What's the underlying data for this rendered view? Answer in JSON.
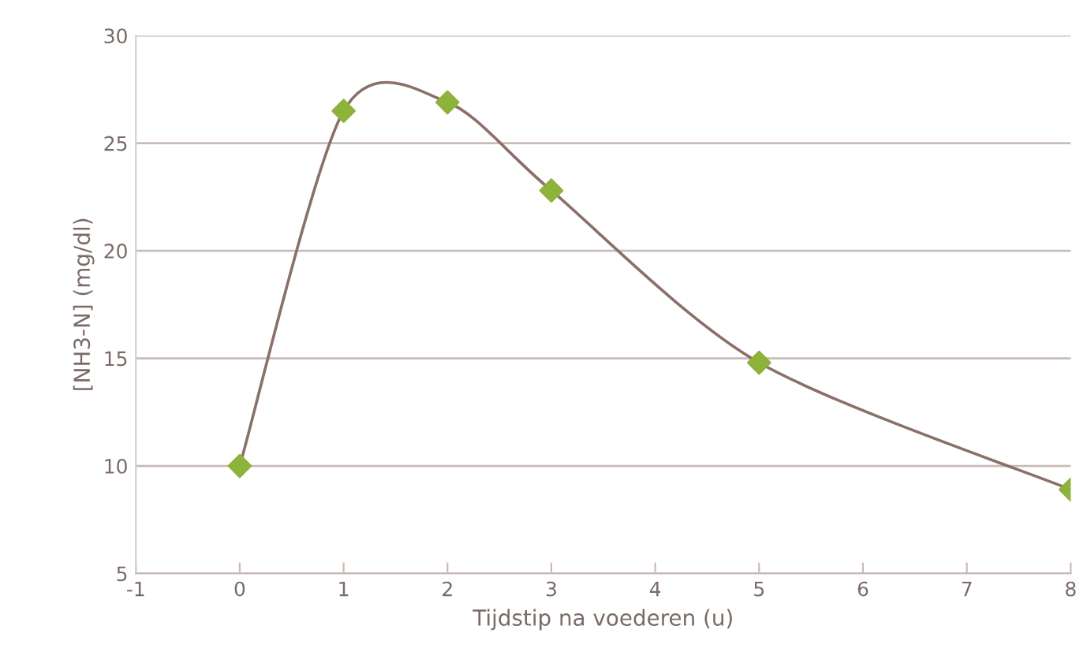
{
  "chart_data": {
    "type": "line",
    "xlabel": "Tijdstip na voederen (u)",
    "ylabel": "[NH3-N] (mg/dl)",
    "x": [
      0,
      1,
      2,
      3,
      5,
      8
    ],
    "series": [
      {
        "color": "#8a7068",
        "colors": [
          "#8db33a",
          "#8db33a",
          "#8db33a",
          "#8db33a",
          "#8db33a",
          "#8db33a"
        ],
        "values": [
          10,
          26.5,
          26.9,
          22.8,
          14.8,
          8.9
        ]
      }
    ],
    "marker": "diamond",
    "line_style": "solid",
    "xlim": [
      -1,
      8
    ],
    "xticks": [
      -1,
      0,
      1,
      2,
      3,
      4,
      5,
      6,
      7,
      8
    ],
    "ylim": [
      5,
      30
    ],
    "yticks": [
      5,
      10,
      15,
      20,
      25,
      30
    ],
    "grid": "y",
    "legend": false
  }
}
